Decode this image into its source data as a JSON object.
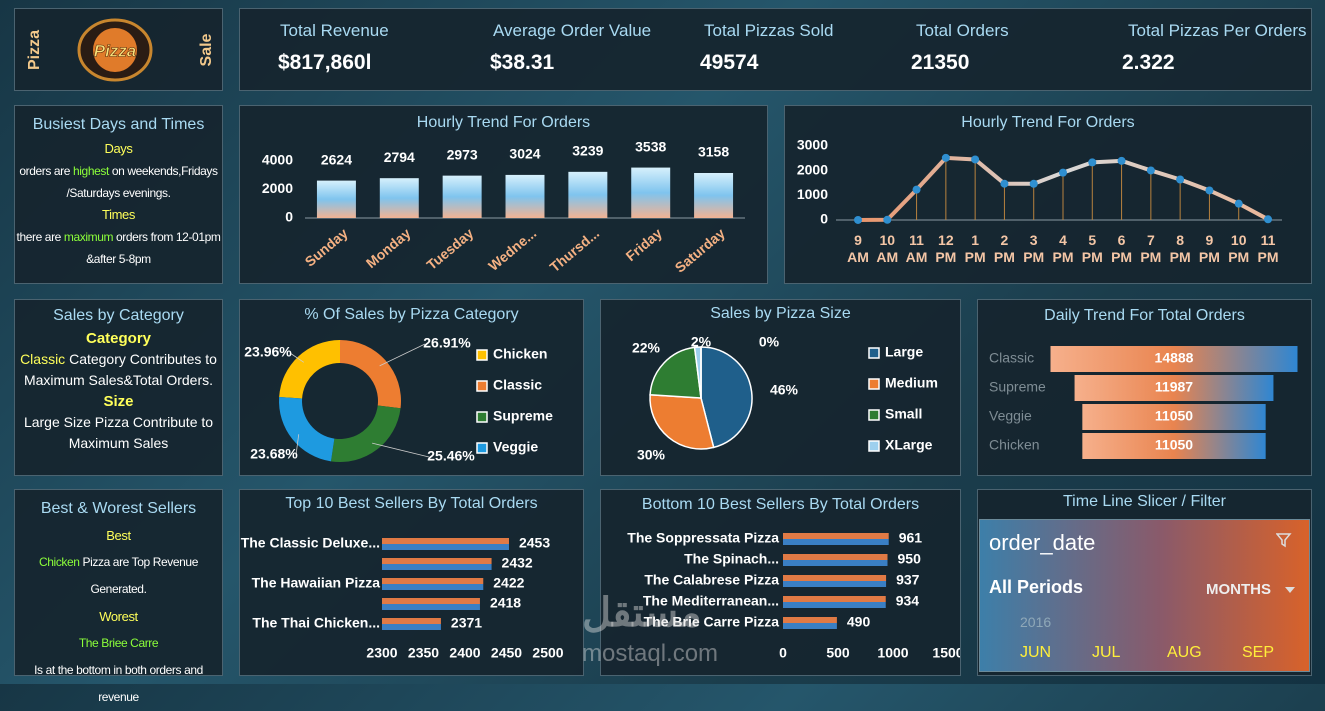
{
  "header": {
    "left_label": "Pizza",
    "logo_text": "Pizza",
    "right_label": "Sale"
  },
  "kpis": [
    {
      "label": "Total Revenue",
      "value": "$817,860l"
    },
    {
      "label": "Average Order Value",
      "value": "$38.31"
    },
    {
      "label": "Total Pizzas Sold",
      "value": 49574
    },
    {
      "label": "Total Orders",
      "value": 21350
    },
    {
      "label": "Total Pizzas Per Orders",
      "value": 2.322
    }
  ],
  "notes": {
    "busiest": {
      "title": "Busiest Days and Times",
      "days_heading": "Days",
      "days_text": [
        "orders are ",
        "highest",
        " on weekends,Fridays /Saturdays evenings."
      ],
      "times_heading": "Times",
      "times_text": [
        "there are ",
        "maximum",
        " orders from 12-01pm &after 5-8pm"
      ]
    },
    "category": {
      "title": "Sales by Category",
      "category_heading": "Category",
      "category_text": [
        "Classic",
        " Category Contributes to Maximum Sales&Total Orders."
      ],
      "size_heading": "Size",
      "size_text": "Large Size Pizza Contribute to Maximum  Sales"
    },
    "sellers": {
      "title": "Best & Worest Sellers",
      "best_heading": "Best",
      "best_text": [
        "Chicken",
        " Pizza are Top Revenue Generated."
      ],
      "worst_heading": "Worest",
      "worst_name": "The Briee Carre",
      "worst_text": "Is at the  bottom in both  orders and  revenue"
    }
  },
  "chart_data": [
    {
      "type": "bar",
      "title": "Hourly Trend For Orders",
      "categories": [
        "Sunday",
        "Monday",
        "Tuesday",
        "Wedne...",
        "Thursd...",
        "Friday",
        "Saturday"
      ],
      "values": [
        2624,
        2794,
        2973,
        3024,
        3239,
        3538,
        3158
      ],
      "ylim": [
        0,
        4000
      ],
      "yticks": [
        0,
        2000,
        4000
      ],
      "gradient": [
        "#d6f0fc",
        "#7fc4ee",
        "#f2b393"
      ]
    },
    {
      "type": "line",
      "title": "Hourly Trend For Orders",
      "categories": [
        "9 AM",
        "10 AM",
        "11 AM",
        "12 PM",
        "1 PM",
        "2 PM",
        "3 PM",
        "4 PM",
        "5 PM",
        "6 PM",
        "7 PM",
        "8 PM",
        "9 PM",
        "10 PM",
        "11 PM"
      ],
      "values": [
        1,
        8,
        1231,
        2520,
        2455,
        1472,
        1468,
        1920,
        2336,
        2399,
        2009,
        1642,
        1198,
        663,
        28
      ],
      "ylim": [
        0,
        3000
      ],
      "yticks": [
        0,
        1000,
        2000,
        3000
      ],
      "gradient": [
        "#e9946a",
        "#d8d8d8",
        "#e9b79a"
      ],
      "marker_color": "#2f8fd0",
      "drop_color": "#b8823e"
    },
    {
      "type": "donut",
      "title": "% Of Sales by Pizza Category",
      "categories": [
        "Chicken",
        "Classic",
        "Supreme",
        "Veggie"
      ],
      "values": [
        23.96,
        26.91,
        25.46,
        23.68
      ],
      "value_labels": [
        "23.96%",
        "26.91%",
        "25.46%",
        "23.68%"
      ],
      "colors": [
        "#ffc000",
        "#ed7d31",
        "#2e7d32",
        "#1e9ae0"
      ]
    },
    {
      "type": "pie",
      "title": "Sales by Pizza Size",
      "categories": [
        "Large",
        "Medium",
        "Small",
        "XLarge",
        null
      ],
      "values": [
        46,
        30,
        22,
        2,
        0
      ],
      "value_labels": [
        "46%",
        "30%",
        "22%",
        "2%",
        "0%"
      ],
      "colors": [
        "#1f5f8b",
        "#ed7d31",
        "#2e7d32",
        "#9dd0ee",
        "#ffffff"
      ]
    },
    {
      "type": "funnel",
      "title": "Daily Trend For Total Orders",
      "categories": [
        "Classic",
        "Supreme",
        "Veggie",
        "Chicken"
      ],
      "values": [
        14888,
        11987,
        11050,
        11050
      ],
      "gradient": [
        "#f6b08c",
        "#e9844f",
        "#2f86d2"
      ]
    },
    {
      "type": "hbar",
      "title": "Top 10 Best Sellers By Total Orders",
      "categories": [
        "The Classic Deluxe...",
        null,
        "The Hawaiian Pizza",
        null,
        "The Thai Chicken..."
      ],
      "values": [
        2453,
        2432,
        2422,
        2418,
        2371
      ],
      "xlim": [
        2300,
        2500
      ],
      "xticks": [
        2300,
        2350,
        2400,
        2450,
        2500
      ],
      "colors": [
        "#e07a45",
        "#3a7fc4"
      ]
    },
    {
      "type": "hbar",
      "title": "Bottom 10 Best Sellers By Total Orders",
      "categories": [
        "The Soppressata Pizza",
        "The Spinach...",
        "The Calabrese Pizza",
        "The Mediterranean...",
        "The Brie Carre Pizza"
      ],
      "values": [
        961,
        950,
        937,
        934,
        490
      ],
      "xlim": [
        0,
        1500
      ],
      "xticks": [
        0,
        500,
        1000,
        1500
      ],
      "colors": [
        "#e07a45",
        "#3a7fc4"
      ]
    }
  ],
  "slicer": {
    "title": "Time Line Slicer / Filter",
    "field": "order_date",
    "period": "All Periods",
    "level": "MONTHS",
    "year": "2016",
    "months": [
      "JUN",
      "JUL",
      "AUG",
      "SEP"
    ]
  },
  "watermark": {
    "arabic": "مستقل",
    "latin": "mostaql.com"
  }
}
